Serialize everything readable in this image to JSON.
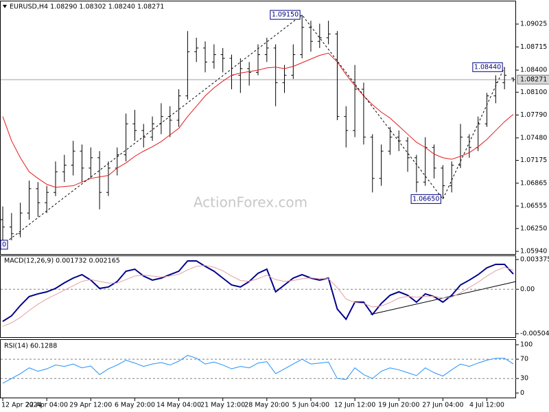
{
  "chart_data": [
    {
      "type": "ohlc",
      "title": "EURUSD,H4  1.08290 1.08302 1.08240 1.08271",
      "watermark": "ActionForex.com",
      "bar_color": "#000000",
      "categories": [
        "12 Apr 2024",
        null,
        null,
        null,
        null,
        "22 Apr 04:00",
        null,
        null,
        null,
        null,
        "29 Apr 12:00",
        null,
        null,
        null,
        null,
        "6 May 20:00",
        null,
        null,
        null,
        null,
        "14 May 04:00",
        null,
        null,
        null,
        null,
        "21 May 12:00",
        null,
        null,
        null,
        null,
        "28 May 20:00",
        null,
        null,
        null,
        null,
        "5 Jun 04:00",
        null,
        null,
        null,
        null,
        "12 Jun 12:00",
        null,
        null,
        null,
        null,
        "19 Jun 20:00",
        null,
        null,
        null,
        null,
        "27 Jun 04:00",
        null,
        null,
        null,
        null,
        "4 Jul 12:00",
        null,
        null,
        null
      ],
      "open": [
        1.0637,
        1.0627,
        1.0618,
        1.0646,
        1.0679,
        1.066,
        1.0674,
        1.0702,
        1.0711,
        1.073,
        1.0707,
        1.0721,
        1.0674,
        1.0707,
        1.0725,
        1.0767,
        1.0758,
        1.0749,
        1.0767,
        1.0777,
        1.0772,
        1.0805,
        1.0865,
        1.087,
        1.0851,
        1.0861,
        1.0856,
        1.0833,
        1.0842,
        1.0837,
        1.0861,
        1.087,
        1.0823,
        1.0833,
        1.0861,
        1.0898,
        1.0879,
        1.0884,
        1.0889,
        1.0777,
        1.0758,
        1.0814,
        1.0749,
        1.0693,
        1.073,
        1.0749,
        1.0744,
        1.0721,
        1.0688,
        1.0735,
        1.0707,
        1.0683,
        1.0711,
        1.0749,
        1.0735,
        1.0767,
        1.0805,
        1.0823,
        1.0829
      ],
      "high": [
        1.0655,
        1.0646,
        1.066,
        1.069,
        1.0688,
        1.0683,
        1.0716,
        1.0725,
        1.0744,
        1.0739,
        1.0735,
        1.073,
        1.0716,
        1.0735,
        1.0781,
        1.0786,
        1.0767,
        1.0777,
        1.0795,
        1.0791,
        1.0814,
        1.0893,
        1.0884,
        1.0879,
        1.0875,
        1.087,
        1.0861,
        1.0856,
        1.0851,
        1.0875,
        1.0884,
        1.0875,
        1.0847,
        1.0875,
        1.0915,
        1.0907,
        1.0903,
        1.0907,
        1.0893,
        1.0791,
        1.0847,
        1.0823,
        1.0753,
        1.0739,
        1.0763,
        1.0758,
        1.0749,
        1.0725,
        1.0749,
        1.0739,
        1.0711,
        1.0716,
        1.0767,
        1.0753,
        1.0777,
        1.0809,
        1.0833,
        1.0844,
        1.08302
      ],
      "low": [
        1.0603,
        1.0609,
        1.0613,
        1.0637,
        1.0641,
        1.0646,
        1.0669,
        1.0688,
        1.0697,
        1.0688,
        1.0693,
        1.0651,
        1.0669,
        1.0697,
        1.0716,
        1.0744,
        1.0735,
        1.0744,
        1.0753,
        1.0749,
        1.0763,
        1.08,
        1.0851,
        1.0837,
        1.0842,
        1.0837,
        1.0814,
        1.0809,
        1.0819,
        1.0833,
        1.0851,
        1.0791,
        1.0809,
        1.0828,
        1.0856,
        1.0865,
        1.087,
        1.0875,
        1.0772,
        1.0735,
        1.0749,
        1.0739,
        1.0674,
        1.0683,
        1.0725,
        1.073,
        1.0702,
        1.0674,
        1.0683,
        1.0693,
        1.0665,
        1.0674,
        1.0707,
        1.0721,
        1.073,
        1.0763,
        1.0795,
        1.0814,
        1.0824
      ],
      "close": [
        1.0627,
        1.0618,
        1.0646,
        1.0679,
        1.066,
        1.0674,
        1.0702,
        1.0711,
        1.073,
        1.0707,
        1.0721,
        1.0674,
        1.0707,
        1.0725,
        1.0767,
        1.0758,
        1.0749,
        1.0767,
        1.0777,
        1.0772,
        1.0805,
        1.0865,
        1.087,
        1.0851,
        1.0861,
        1.0856,
        1.0833,
        1.0842,
        1.0837,
        1.0861,
        1.087,
        1.0823,
        1.0833,
        1.0861,
        1.0898,
        1.0879,
        1.0884,
        1.0889,
        1.0777,
        1.0758,
        1.0814,
        1.0749,
        1.0693,
        1.073,
        1.0749,
        1.0744,
        1.0721,
        1.0688,
        1.0735,
        1.0707,
        1.0683,
        1.0711,
        1.0749,
        1.0735,
        1.0767,
        1.0805,
        1.0823,
        1.0833,
        1.08271
      ],
      "ma": {
        "color": "#e31a1c",
        "values": [
          1.0777,
          1.0744,
          1.0721,
          1.0702,
          1.0693,
          1.0685,
          1.0681,
          1.0682,
          1.0683,
          1.0688,
          1.0693,
          1.0695,
          1.0697,
          1.0707,
          1.0714,
          1.0723,
          1.073,
          1.0736,
          1.0743,
          1.0752,
          1.0761,
          1.0777,
          1.0791,
          1.0805,
          1.0816,
          1.0825,
          1.0833,
          1.0836,
          1.0838,
          1.084,
          1.0843,
          1.0844,
          1.0842,
          1.0845,
          1.085,
          1.0855,
          1.086,
          1.0863,
          1.0851,
          1.0834,
          1.0819,
          1.0805,
          1.0793,
          1.0783,
          1.0775,
          1.0764,
          1.0753,
          1.0742,
          1.0735,
          1.0726,
          1.0721,
          1.0719,
          1.0723,
          1.0728,
          1.0736,
          1.0746,
          1.0758,
          1.077,
          1.078
        ]
      },
      "last_price": 1.08271,
      "annotations": [
        {
          "label": "0"
        },
        {
          "value": 1.0915,
          "label": "1.09150"
        },
        {
          "value": 1.0665,
          "label": "1.06650"
        },
        {
          "value": 1.0844,
          "label": "1.08440"
        }
      ],
      "ylim": [
        1.05903,
        1.09333
      ],
      "yticks": [
        1.09025,
        1.08715,
        {
          "value": 1.084,
          "label": "1.08400"
        },
        {
          "value": 1.081,
          "label": "1.08100"
        },
        {
          "value": 1.0779,
          "label": "1.07790"
        },
        {
          "value": 1.0748,
          "label": "1.07480"
        },
        1.07175,
        1.06865,
        1.06555,
        {
          "value": 1.0625,
          "label": "1.06250"
        },
        {
          "value": 1.0594,
          "label": "1.05940"
        }
      ]
    },
    {
      "type": "line",
      "title": "MACD(12,26,9) 0.001732 0.002165",
      "series": [
        {
          "color": "#00008b",
          "values": [
            -0.00364,
            -0.00301,
            -0.00184,
            -0.00083,
            -0.00052,
            -0.00029,
            0.0001,
            0.00073,
            0.00127,
            0.00166,
            0.00104,
            0.0001,
            0.00026,
            0.00088,
            0.00205,
            0.00228,
            0.0015,
            0.00104,
            0.00127,
            0.00166,
            0.00205,
            0.00322,
            0.00322,
            0.0026,
            0.00205,
            0.00127,
            0.00049,
            0.00026,
            0.00088,
            0.00182,
            0.00228,
            -0.00029,
            0.00049,
            0.00127,
            0.00166,
            0.00127,
            0.00104,
            0.00127,
            -0.00224,
            -0.0034,
            -0.00146,
            -0.00146,
            -0.00286,
            -0.00161,
            -0.00068,
            -0.00029,
            -0.00068,
            -0.00146,
            -0.00052,
            -0.00083,
            -0.00146,
            -0.00068,
            0.00049,
            0.00104,
            0.00166,
            0.00244,
            0.00283,
            0.00283,
            0.001732
          ]
        },
        {
          "color": "#e3a0a0",
          "values": [
            -0.0042,
            -0.0038,
            -0.0032,
            -0.0024,
            -0.0017,
            -0.0011,
            -0.0006,
            -0.0001,
            0.0004,
            0.0009,
            0.0011,
            0.0009,
            0.0007,
            0.0007,
            0.0011,
            0.0015,
            0.0016,
            0.0015,
            0.0014,
            0.0015,
            0.0017,
            0.0022,
            0.0026,
            0.0027,
            0.0025,
            0.0021,
            0.0015,
            0.001,
            0.0009,
            0.0012,
            0.0016,
            0.0011,
            0.0009,
            0.001,
            0.0012,
            0.0013,
            0.0012,
            0.0012,
            0.0002,
            -0.0011,
            -0.0015,
            -0.0016,
            -0.002,
            -0.0019,
            -0.0015,
            -0.001,
            -0.0008,
            -0.0009,
            -0.0008,
            -0.0008,
            -0.001,
            -0.0009,
            -0.0004,
            0.0002,
            0.0008,
            0.0015,
            0.0021,
            0.0025,
            0.002165
          ]
        }
      ],
      "ylim": [
        -0.00551,
        0.00384
      ],
      "yticks": [
        0.003375,
        {
          "value": 0,
          "label": "0.00"
        },
        -0.00504
      ]
    },
    {
      "type": "line",
      "title": "RSI(14) 60.1288",
      "series": [
        {
          "color": "#1e90ff",
          "values": [
            20,
            30,
            40,
            52,
            45,
            50,
            58,
            55,
            60,
            52,
            56,
            38,
            50,
            58,
            68,
            62,
            55,
            60,
            63,
            58,
            66,
            78,
            72,
            60,
            64,
            58,
            50,
            55,
            52,
            62,
            65,
            40,
            50,
            60,
            70,
            60,
            62,
            64,
            30,
            28,
            52,
            38,
            30,
            45,
            52,
            48,
            42,
            36,
            52,
            42,
            35,
            48,
            60,
            55,
            62,
            68,
            72,
            72,
            60.1288
          ]
        }
      ],
      "ylim": [
        -11,
        110
      ],
      "yticks": [
        100,
        70,
        30,
        0
      ]
    }
  ]
}
